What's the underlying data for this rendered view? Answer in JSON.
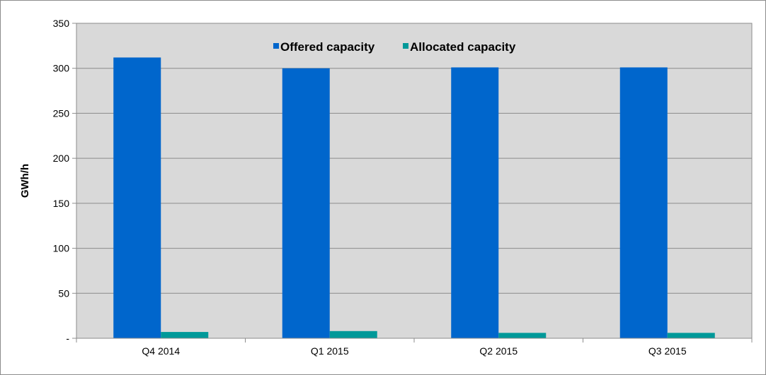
{
  "chart_data": {
    "type": "bar",
    "categories": [
      "Q4 2014",
      "Q1 2015",
      "Q2 2015",
      "Q3 2015"
    ],
    "series": [
      {
        "name": "Offered capacity",
        "values": [
          312,
          300,
          301,
          301
        ],
        "color": "#0066cc"
      },
      {
        "name": "Allocated capacity",
        "values": [
          7,
          8,
          6,
          6
        ],
        "color": "#009999"
      }
    ],
    "xlabel": "",
    "ylabel": "GWh/h",
    "ylim": [
      0,
      350
    ],
    "yticks": [
      0,
      50,
      100,
      150,
      200,
      250,
      300,
      350
    ],
    "ytick_labels": [
      "-",
      "50",
      "100",
      "150",
      "200",
      "250",
      "300",
      "350"
    ],
    "grid": true,
    "legend_position": "top-center",
    "plot_background": "#d9d9d9"
  }
}
